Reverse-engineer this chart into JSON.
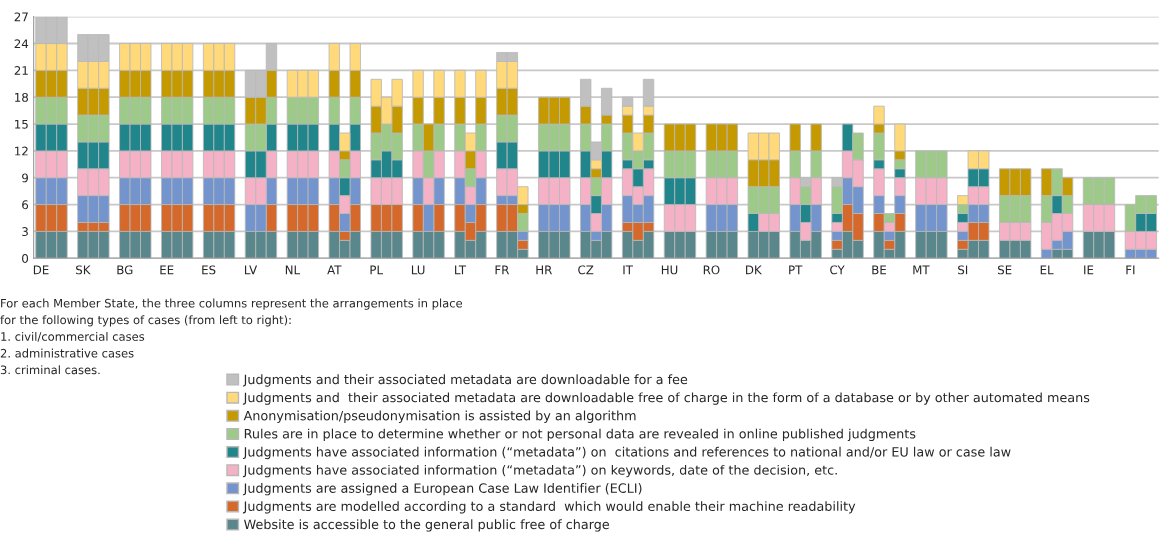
{
  "chart_data": {
    "type": "bar",
    "stacked": true,
    "categories": [
      "DE",
      null,
      null,
      "SK",
      null,
      null,
      "BG",
      null,
      null,
      "EE",
      null,
      null,
      "ES",
      null,
      null,
      "LV",
      null,
      null,
      "NL",
      null,
      null,
      "AT",
      null,
      null,
      "PL",
      null,
      null,
      "LU",
      null,
      null,
      "LT",
      null,
      null,
      "FR",
      null,
      null,
      "HR",
      null,
      null,
      "CZ",
      null,
      null,
      "IT",
      null,
      null,
      "HU",
      null,
      null,
      "RO",
      null,
      null,
      "DK",
      null,
      null,
      "PT",
      null,
      null,
      "CY",
      null,
      null,
      "BE",
      null,
      null,
      "MT",
      null,
      null,
      "SI",
      null,
      null,
      "SE",
      null,
      null,
      "EL",
      null,
      null,
      "IE",
      null,
      null,
      "FI",
      null,
      null
    ],
    "series": [
      {
        "name": "Website is accessible to the general public free of charge",
        "color": "#5a878c",
        "values": [
          3,
          3,
          3,
          3,
          3,
          3,
          3,
          3,
          3,
          3,
          3,
          3,
          3,
          3,
          3,
          3,
          3,
          3,
          3,
          3,
          3,
          3,
          2,
          3,
          3,
          3,
          3,
          3,
          3,
          3,
          3,
          2,
          3,
          3,
          3,
          1,
          3,
          3,
          3,
          3,
          2,
          3,
          3,
          2,
          3,
          3,
          3,
          3,
          3,
          3,
          3,
          3,
          3,
          3,
          3,
          2,
          3,
          1,
          3,
          2,
          3,
          1,
          3,
          3,
          3,
          3,
          1,
          2,
          2,
          2,
          2,
          2,
          0,
          1,
          1,
          3,
          3,
          3,
          0,
          0,
          0
        ]
      },
      {
        "name": "Judgments are modelled according to a standard  which would enable their machine readability",
        "color": "#d4692b",
        "values": [
          3,
          3,
          3,
          1,
          1,
          1,
          3,
          3,
          3,
          3,
          3,
          3,
          3,
          3,
          3,
          0,
          0,
          3,
          3,
          3,
          3,
          3,
          1,
          3,
          3,
          3,
          3,
          3,
          0,
          3,
          3,
          2,
          3,
          3,
          3,
          1,
          0,
          0,
          0,
          0,
          0,
          0,
          1,
          2,
          1,
          0,
          0,
          0,
          0,
          0,
          0,
          0,
          0,
          0,
          0,
          0,
          0,
          1,
          3,
          3,
          2,
          1,
          2,
          0,
          0,
          0,
          1,
          2,
          2,
          0,
          0,
          0,
          0,
          0,
          0,
          0,
          0,
          0,
          0,
          0,
          0
        ]
      },
      {
        "name": "Judgments are assigned a European Case Law Identifier (ECLI)",
        "color": "#7394cc",
        "values": [
          3,
          3,
          3,
          3,
          3,
          3,
          3,
          3,
          3,
          3,
          3,
          3,
          3,
          3,
          3,
          3,
          3,
          3,
          3,
          3,
          3,
          3,
          2,
          3,
          0,
          0,
          0,
          3,
          3,
          3,
          3,
          2,
          3,
          1,
          1,
          1,
          3,
          3,
          3,
          3,
          1,
          3,
          3,
          2,
          3,
          0,
          0,
          0,
          3,
          3,
          3,
          0,
          0,
          0,
          3,
          0,
          3,
          1,
          3,
          3,
          2,
          1,
          2,
          3,
          3,
          3,
          1,
          2,
          2,
          0,
          0,
          0,
          1,
          1,
          2,
          0,
          0,
          0,
          1,
          1,
          1
        ]
      },
      {
        "name": "Judgments have associated information (“metadata”) on keywords, date of the decision, etc.",
        "color": "#f5b1c5",
        "values": [
          3,
          3,
          3,
          3,
          3,
          3,
          3,
          3,
          3,
          3,
          3,
          3,
          3,
          3,
          3,
          3,
          3,
          3,
          3,
          3,
          3,
          3,
          2,
          3,
          3,
          3,
          3,
          3,
          3,
          3,
          3,
          2,
          3,
          3,
          3,
          0,
          3,
          3,
          3,
          3,
          2,
          3,
          3,
          2,
          3,
          3,
          3,
          3,
          3,
          3,
          3,
          0,
          2,
          2,
          3,
          2,
          3,
          1,
          3,
          3,
          3,
          1,
          2,
          3,
          3,
          3,
          1,
          2,
          2,
          2,
          2,
          2,
          3,
          3,
          2,
          3,
          3,
          3,
          2,
          2,
          2
        ]
      },
      {
        "name": "Judgments have associated information (“metadata”) on  citations and references to national and/or EU law or case law",
        "color": "#21868c",
        "values": [
          3,
          3,
          3,
          3,
          3,
          3,
          3,
          3,
          3,
          3,
          3,
          3,
          3,
          3,
          3,
          3,
          3,
          3,
          3,
          3,
          3,
          3,
          2,
          3,
          2,
          3,
          2,
          0,
          0,
          0,
          0,
          0,
          0,
          3,
          3,
          0,
          3,
          3,
          3,
          3,
          2,
          3,
          1,
          2,
          1,
          3,
          3,
          3,
          0,
          0,
          0,
          2,
          0,
          0,
          0,
          2,
          0,
          1,
          3,
          0,
          1,
          0,
          1,
          0,
          0,
          0,
          1,
          2,
          2,
          0,
          0,
          0,
          0,
          2,
          0,
          0,
          0,
          0,
          0,
          2,
          2
        ]
      },
      {
        "name": "Rules are in place to determine whether or not personal data are revealed in online published judgments",
        "color": "#9dca88",
        "values": [
          3,
          3,
          3,
          3,
          3,
          3,
          3,
          3,
          3,
          3,
          3,
          3,
          3,
          3,
          3,
          3,
          3,
          3,
          3,
          3,
          3,
          3,
          2,
          3,
          3,
          3,
          3,
          3,
          3,
          3,
          3,
          2,
          3,
          3,
          3,
          2,
          3,
          3,
          3,
          3,
          2,
          3,
          3,
          2,
          3,
          3,
          3,
          3,
          3,
          3,
          3,
          3,
          3,
          3,
          3,
          2,
          3,
          3,
          0,
          3,
          3,
          1,
          1,
          3,
          3,
          3,
          1,
          0,
          0,
          3,
          3,
          3,
          3,
          3,
          2,
          3,
          3,
          3,
          3,
          2,
          2
        ]
      },
      {
        "name": "Anonymisation/pseudonymisation is assisted by an algorithm",
        "color": "#c49a00",
        "values": [
          3,
          3,
          3,
          3,
          3,
          3,
          3,
          3,
          3,
          3,
          3,
          3,
          3,
          3,
          3,
          3,
          3,
          3,
          0,
          0,
          0,
          3,
          1,
          3,
          3,
          0,
          3,
          3,
          3,
          3,
          3,
          2,
          3,
          3,
          3,
          1,
          3,
          3,
          3,
          2,
          1,
          1,
          2,
          0,
          2,
          3,
          3,
          3,
          3,
          3,
          3,
          3,
          3,
          3,
          3,
          0,
          3,
          0,
          0,
          0,
          1,
          0,
          1,
          0,
          0,
          0,
          0,
          0,
          0,
          3,
          3,
          3,
          3,
          0,
          2,
          0,
          0,
          0,
          0,
          0,
          0
        ]
      },
      {
        "name": "Judgments and  their associated metadata are downloadable free of charge in the form of a database or by other automated means",
        "color": "#ffd97a",
        "values": [
          3,
          3,
          3,
          3,
          3,
          3,
          3,
          3,
          3,
          3,
          3,
          3,
          3,
          3,
          3,
          0,
          0,
          0,
          3,
          3,
          3,
          3,
          2,
          3,
          3,
          3,
          3,
          3,
          0,
          3,
          3,
          2,
          3,
          3,
          3,
          2,
          0,
          0,
          0,
          0,
          1,
          0,
          1,
          2,
          1,
          0,
          0,
          0,
          0,
          0,
          0,
          3,
          3,
          3,
          0,
          0,
          0,
          0,
          0,
          0,
          2,
          0,
          3,
          0,
          0,
          0,
          1,
          2,
          2,
          0,
          0,
          0,
          0,
          0,
          0,
          0,
          0,
          0,
          0,
          0,
          0
        ]
      },
      {
        "name": "Judgments and their associated metadata are downloadable for a fee",
        "color": "#c0c0c0",
        "values": [
          3,
          3,
          3,
          3,
          3,
          3,
          0,
          0,
          0,
          0,
          0,
          0,
          0,
          0,
          0,
          3,
          3,
          3,
          0,
          0,
          0,
          0,
          0,
          0,
          0,
          0,
          0,
          0,
          0,
          0,
          0,
          0,
          0,
          1,
          1,
          0,
          0,
          0,
          0,
          3,
          2,
          3,
          1,
          0,
          3,
          0,
          0,
          0,
          0,
          0,
          0,
          0,
          0,
          0,
          0,
          1,
          0,
          1,
          0,
          0,
          0,
          0,
          0,
          0,
          0,
          0,
          0,
          0,
          0,
          0,
          0,
          0,
          0,
          0,
          0,
          0,
          0,
          0,
          0,
          0,
          0
        ]
      }
    ],
    "ylim": [
      0,
      27
    ],
    "yticks": [
      0,
      3,
      6,
      9,
      12,
      15,
      18,
      21,
      24,
      27
    ],
    "grid": "y",
    "legend": "bottom",
    "annotations": [
      "For each Member State, the three columns represent the arrangements in place",
      "for the following types of cases (from left to right):",
      "1. civil/commercial cases",
      "2. administrative cases",
      "3. criminal cases."
    ]
  }
}
